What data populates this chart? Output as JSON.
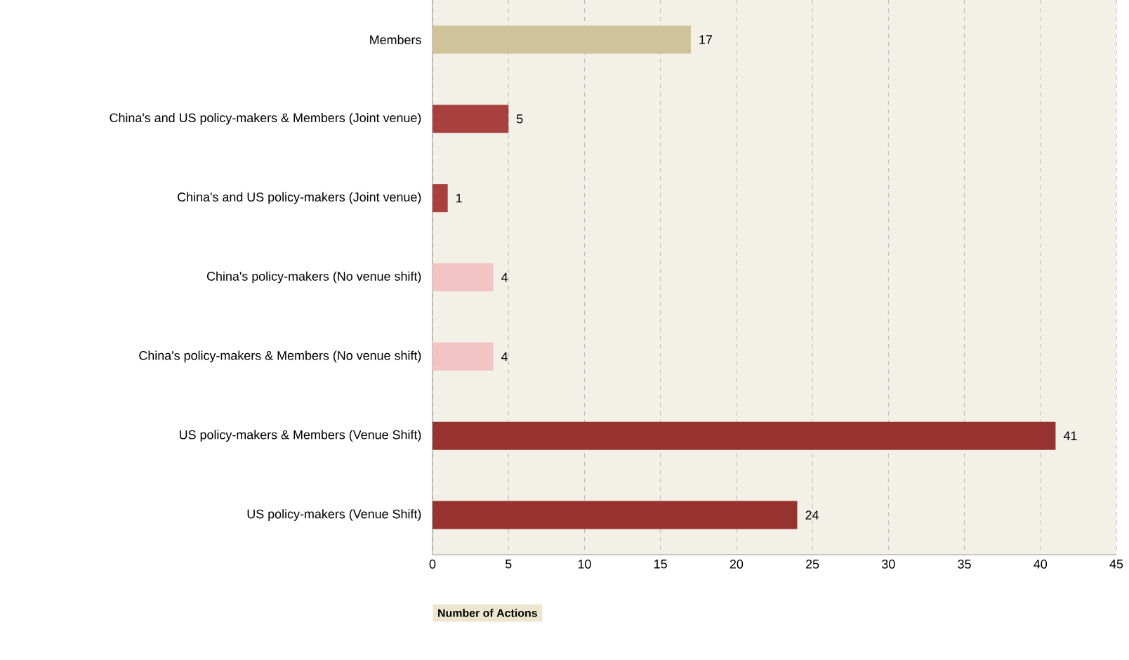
{
  "chart_data": {
    "type": "bar",
    "orientation": "horizontal",
    "xlabel": "Number of Actions",
    "categories": [
      "Members",
      "China's and US policy-makers & Members (Joint venue)",
      "China's and US policy-makers (Joint venue)",
      "China's policy-makers (No venue shift)",
      "China's policy-makers & Members (No venue shift)",
      "US policy-makers & Members (Venue Shift)",
      "US policy-makers (Venue Shift)"
    ],
    "values": [
      17,
      5,
      1,
      4,
      4,
      41,
      24
    ],
    "colors": [
      "#cfc39a",
      "#a8403f",
      "#a8403f",
      "#f2c4c4",
      "#f2c4c4",
      "#963330",
      "#963330"
    ],
    "xlim": [
      0,
      45
    ],
    "xticks": [
      0,
      5,
      10,
      15,
      20,
      25,
      30,
      35,
      40,
      45
    ],
    "grid": "x",
    "data_labels": true
  }
}
